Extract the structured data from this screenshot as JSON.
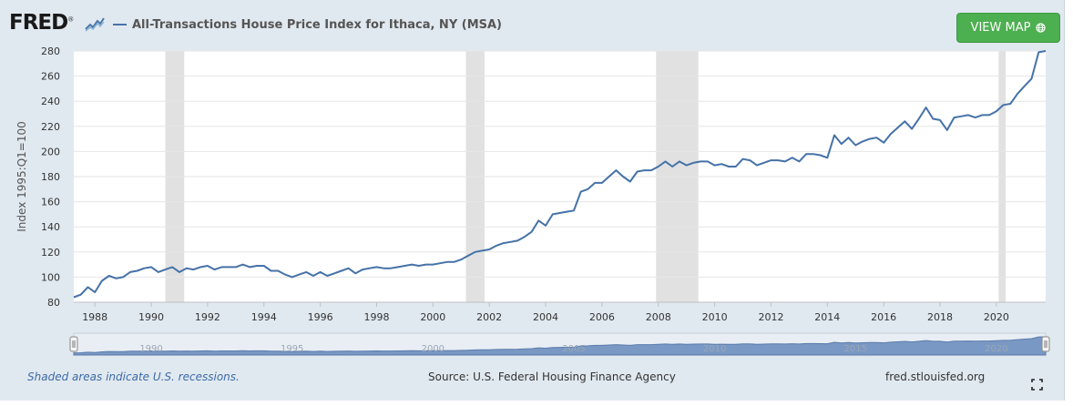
{
  "header": {
    "logo_text": "FRED",
    "logo_mark": "®",
    "view_map_label": "VIEW MAP",
    "view_map_icon": "globe-icon"
  },
  "footer": {
    "recession_note": "Shaded areas indicate U.S. recessions.",
    "source": "Source: U.S. Federal Housing Finance Agency",
    "site": "fred.stlouisfed.org"
  },
  "colors": {
    "series": "#4572a7",
    "recession": "#e1e1e1",
    "button": "#4caf50",
    "navigator": "#6e8fbf"
  },
  "chart_data": {
    "type": "line",
    "title": "All-Transactions House Price Index for Ithaca, NY (MSA)",
    "xlabel": "",
    "ylabel": "Index 1995:Q1=100",
    "xlim": [
      1987.25,
      2021.75
    ],
    "ylim": [
      80,
      280
    ],
    "yticks": [
      80,
      100,
      120,
      140,
      160,
      180,
      200,
      220,
      240,
      260,
      280
    ],
    "xticks": [
      1988,
      1990,
      1992,
      1994,
      1996,
      1998,
      2000,
      2002,
      2004,
      2006,
      2008,
      2010,
      2012,
      2014,
      2016,
      2018,
      2020
    ],
    "xtick_labels": [
      "1988",
      "1990",
      "1992",
      "1994",
      "1996",
      "1998",
      "2000",
      "2002",
      "2004",
      "2006",
      "2008",
      "2010",
      "2012",
      "2014",
      "2016",
      "2018",
      "2020"
    ],
    "navigator_labels": [
      "1990",
      "1995",
      "2000",
      "2005",
      "2010",
      "2015",
      "2020"
    ],
    "navigator_label_years": [
      1990,
      1995,
      2000,
      2005,
      2010,
      2015,
      2020
    ],
    "grid": true,
    "legend": "top-left",
    "recessions": [
      [
        1990.5,
        1991.17
      ],
      [
        2001.17,
        2001.83
      ],
      [
        2007.92,
        2009.42
      ],
      [
        2020.08,
        2020.33
      ]
    ],
    "series": [
      {
        "name": "All-Transactions House Price Index for Ithaca, NY (MSA)",
        "x": [
          1987.25,
          1987.5,
          1987.75,
          1988.0,
          1988.25,
          1988.5,
          1988.75,
          1989.0,
          1989.25,
          1989.5,
          1989.75,
          1990.0,
          1990.25,
          1990.5,
          1990.75,
          1991.0,
          1991.25,
          1991.5,
          1991.75,
          1992.0,
          1992.25,
          1992.5,
          1992.75,
          1993.0,
          1993.25,
          1993.5,
          1993.75,
          1994.0,
          1994.25,
          1994.5,
          1994.75,
          1995.0,
          1995.25,
          1995.5,
          1995.75,
          1996.0,
          1996.25,
          1996.5,
          1996.75,
          1997.0,
          1997.25,
          1997.5,
          1997.75,
          1998.0,
          1998.25,
          1998.5,
          1998.75,
          1999.0,
          1999.25,
          1999.5,
          1999.75,
          2000.0,
          2000.25,
          2000.5,
          2000.75,
          2001.0,
          2001.25,
          2001.5,
          2001.75,
          2002.0,
          2002.25,
          2002.5,
          2002.75,
          2003.0,
          2003.25,
          2003.5,
          2003.75,
          2004.0,
          2004.25,
          2004.5,
          2004.75,
          2005.0,
          2005.25,
          2005.5,
          2005.75,
          2006.0,
          2006.25,
          2006.5,
          2006.75,
          2007.0,
          2007.25,
          2007.5,
          2007.75,
          2008.0,
          2008.25,
          2008.5,
          2008.75,
          2009.0,
          2009.25,
          2009.5,
          2009.75,
          2010.0,
          2010.25,
          2010.5,
          2010.75,
          2011.0,
          2011.25,
          2011.5,
          2011.75,
          2012.0,
          2012.25,
          2012.5,
          2012.75,
          2013.0,
          2013.25,
          2013.5,
          2013.75,
          2014.0,
          2014.25,
          2014.5,
          2014.75,
          2015.0,
          2015.25,
          2015.5,
          2015.75,
          2016.0,
          2016.25,
          2016.5,
          2016.75,
          2017.0,
          2017.25,
          2017.5,
          2017.75,
          2018.0,
          2018.25,
          2018.5,
          2018.75,
          2019.0,
          2019.25,
          2019.5,
          2019.75,
          2020.0,
          2020.25,
          2020.5,
          2020.75,
          2021.0,
          2021.25,
          2021.5,
          2021.75
        ],
        "y": [
          84,
          86,
          92,
          88,
          97,
          101,
          99,
          100,
          104,
          105,
          107,
          108,
          104,
          106,
          108,
          104,
          107,
          106,
          108,
          109,
          106,
          108,
          108,
          108,
          110,
          108,
          109,
          109,
          105,
          105,
          102,
          100,
          102,
          104,
          101,
          104,
          101,
          103,
          105,
          107,
          103,
          106,
          107,
          108,
          107,
          107,
          108,
          109,
          110,
          109,
          110,
          110,
          111,
          112,
          112,
          114,
          117,
          120,
          121,
          122,
          125,
          127,
          128,
          129,
          132,
          136,
          145,
          141,
          150,
          151,
          152,
          153,
          168,
          170,
          175,
          175,
          180,
          185,
          180,
          176,
          184,
          185,
          185,
          188,
          192,
          188,
          192,
          189,
          191,
          192,
          192,
          189,
          190,
          188,
          188,
          194,
          193,
          189,
          191,
          193,
          193,
          192,
          195,
          192,
          198,
          198,
          197,
          195,
          213,
          206,
          211,
          205,
          208,
          210,
          211,
          207,
          214,
          219,
          224,
          218,
          226,
          235,
          226,
          225,
          217,
          227,
          228,
          229,
          227,
          229,
          229,
          232,
          237,
          238,
          246,
          252,
          258,
          279,
          280
        ]
      }
    ]
  }
}
